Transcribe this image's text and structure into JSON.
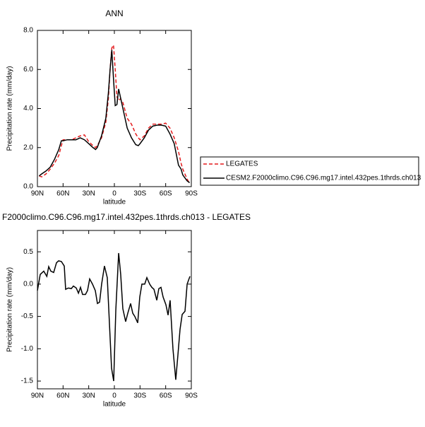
{
  "chart_data": [
    {
      "type": "line",
      "title": "ANN",
      "x_label": "latitude",
      "y_label": "Precipitation rate (mm/day)",
      "x": [
        88,
        85,
        80,
        75,
        70,
        65,
        62,
        60,
        55,
        50,
        45,
        40,
        35,
        30,
        25,
        22,
        20,
        15,
        10,
        7,
        5,
        3,
        1,
        -1,
        -3,
        -5,
        -7,
        -10,
        -15,
        -20,
        -25,
        -28,
        -30,
        -35,
        -40,
        -45,
        -50,
        -55,
        -60,
        -65,
        -70,
        -75,
        -78,
        -80,
        -85,
        -88
      ],
      "series": [
        {
          "name": "LEGATES",
          "color": "#e41a1c",
          "line_style": "dashed",
          "values": [
            0.55,
            0.5,
            0.65,
            0.9,
            1.2,
            1.6,
            2.1,
            2.4,
            2.4,
            2.4,
            2.5,
            2.6,
            2.65,
            2.3,
            2.1,
            2.0,
            2.1,
            2.5,
            3.3,
            4.5,
            6.0,
            7.1,
            7.25,
            6.0,
            4.6,
            4.4,
            4.5,
            4.3,
            3.5,
            3.2,
            2.7,
            2.5,
            2.4,
            2.6,
            3.0,
            3.2,
            3.2,
            3.2,
            3.25,
            3.0,
            2.5,
            1.8,
            1.2,
            0.9,
            0.4,
            0.15
          ]
        },
        {
          "name": "CESM2.F2000climo.C96.C96.mg17.intel.432pes.1thrds.ch013",
          "color": "#000000",
          "line_style": "solid",
          "values": [
            0.55,
            0.65,
            0.8,
            1.0,
            1.4,
            1.9,
            2.35,
            2.35,
            2.4,
            2.4,
            2.4,
            2.5,
            2.4,
            2.2,
            2.0,
            1.9,
            2.0,
            2.6,
            3.5,
            4.8,
            6.0,
            7.0,
            5.5,
            4.15,
            4.2,
            5.0,
            4.6,
            4.0,
            3.0,
            2.5,
            2.15,
            2.1,
            2.2,
            2.5,
            2.9,
            3.1,
            3.15,
            3.15,
            3.1,
            2.7,
            2.2,
            1.1,
            0.9,
            0.6,
            0.3,
            0.2
          ]
        }
      ],
      "xlim": [
        90,
        -90
      ],
      "xticks": [
        {
          "value": 90,
          "label": "90N"
        },
        {
          "value": 60,
          "label": "60N"
        },
        {
          "value": 30,
          "label": "30N"
        },
        0,
        {
          "value": -30,
          "label": "30S"
        },
        {
          "value": -60,
          "label": "60S"
        },
        {
          "value": -90,
          "label": "90S"
        }
      ],
      "ylim": [
        0,
        8
      ],
      "yticks": [
        {
          "value": 0,
          "label": "0.0"
        },
        {
          "value": 2,
          "label": "2.0"
        },
        {
          "value": 4,
          "label": "4.0"
        },
        {
          "value": 6,
          "label": "6.0"
        },
        {
          "value": 8,
          "label": "8.0"
        }
      ],
      "legend": "right"
    },
    {
      "type": "line",
      "title": "F2000climo.C96.C96.mg17.intel.432pes.1thrds.ch013 - LEGATES",
      "x_label": "latitude",
      "y_label": "Precipitation rate (mm/day)",
      "x": [
        90,
        86.7,
        82.6,
        79,
        76.8,
        74.3,
        71,
        67.7,
        65.2,
        62,
        58.6,
        57,
        53.7,
        50.4,
        47.9,
        44.6,
        42,
        39.6,
        37.2,
        33.8,
        31.4,
        28.9,
        25.6,
        22.3,
        19.8,
        17.3,
        14.9,
        11.6,
        8.3,
        5.8,
        3.3,
        0.8,
        -1.7,
        -5,
        -7.4,
        -9.9,
        -13.2,
        -15.7,
        -19,
        -21.5,
        -23.9,
        -27.3,
        -29.7,
        -32.2,
        -35.5,
        -38,
        -41.3,
        -43.8,
        -46.3,
        -49.6,
        -52,
        -54.5,
        -57,
        -60.3,
        -62.8,
        -65.2,
        -68.5,
        -71.8,
        -74.3,
        -76.8,
        -79.3,
        -82.6,
        -85.1,
        -88.4
      ],
      "series": [
        {
          "name": null,
          "color": "#000000",
          "line_style": "solid",
          "values": [
            -0.1,
            0.15,
            0.2,
            0.12,
            0.27,
            0.2,
            0.18,
            0.33,
            0.36,
            0.35,
            0.28,
            -0.08,
            -0.06,
            -0.07,
            -0.03,
            -0.06,
            -0.14,
            -0.05,
            -0.16,
            -0.16,
            -0.1,
            0.08,
            0.0,
            -0.1,
            -0.3,
            -0.28,
            0.0,
            0.28,
            0.1,
            -0.6,
            -1.3,
            -1.5,
            -0.4,
            0.48,
            0.15,
            -0.38,
            -0.58,
            -0.45,
            -0.3,
            -0.45,
            -0.5,
            -0.6,
            -0.2,
            0.0,
            0.0,
            0.1,
            0.0,
            -0.05,
            -0.08,
            -0.25,
            -0.07,
            -0.05,
            -0.2,
            -0.32,
            -0.48,
            -0.25,
            -1.0,
            -1.48,
            -1.1,
            -0.7,
            -0.47,
            -0.42,
            0.0,
            0.12
          ]
        }
      ],
      "xlim": [
        90,
        -90
      ],
      "xticks": [
        {
          "value": 90,
          "label": "90N"
        },
        {
          "value": 60,
          "label": "60N"
        },
        {
          "value": 30,
          "label": "30N"
        },
        0,
        {
          "value": -30,
          "label": "30S"
        },
        {
          "value": -60,
          "label": "60S"
        },
        {
          "value": -90,
          "label": "90S"
        }
      ],
      "ylim": [
        -1.62,
        0.83
      ],
      "yticks": [
        0.5,
        {
          "value": 0,
          "label": "0.0"
        },
        -0.5,
        {
          "value": -1,
          "label": "-1.0"
        },
        -1.5
      ]
    }
  ]
}
